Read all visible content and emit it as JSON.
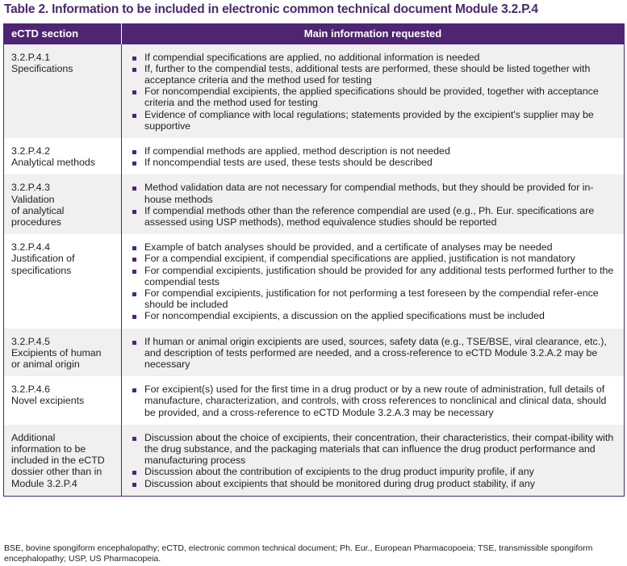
{
  "title": "Table 2. Information to be included in electronic common technical document Module 3.2.P.4",
  "headers": [
    "eCTD section",
    "Main information requested"
  ],
  "rows": [
    {
      "section": [
        "3.2.P.4.1",
        "Specifications"
      ],
      "items": [
        "If compendial specifications are applied, no additional information is needed",
        "If, further to the compendial tests, additional tests are performed, these should be listed together with acceptance criteria and the method used for testing",
        "For noncompendial excipients, the applied specifications should be provided, together with acceptance criteria and the method used for testing",
        "Evidence of compliance with local regulations; statements provided by the excipient's supplier may be supportive"
      ]
    },
    {
      "section": [
        "3.2.P.4.2",
        "Analytical methods"
      ],
      "items": [
        "If compendial methods are applied, method description is not needed",
        "If noncompendial tests are used, these tests should be described"
      ]
    },
    {
      "section": [
        "3.2.P.4.3",
        "Validation",
        "of analytical",
        "procedures"
      ],
      "items": [
        "Method validation data are not necessary for compendial methods, but they should be provided for in-house methods",
        "If compendial methods other than the reference compendial are used (e.g., Ph. Eur. specifications are assessed using USP methods), method equivalence studies should be reported"
      ]
    },
    {
      "section": [
        "3.2.P.4.4",
        "Justification of",
        "specifications"
      ],
      "items": [
        "Example of batch analyses should be provided, and a certificate of analyses may be needed",
        "For a compendial excipient, if compendial specifications are applied, justification is not mandatory",
        "For compendial excipients, justification should be provided for any additional tests performed further to the compendial tests",
        "For compendial excipients, justification for not performing a test foreseen by the compendial refer-ence should be included",
        "For noncompendial excipients, a discussion on the applied specifications must be included"
      ]
    },
    {
      "section": [
        "3.2.P.4.5",
        "Excipients of human",
        "or animal origin"
      ],
      "items": [
        "If human or animal origin excipients are used, sources, safety data (e.g., TSE/BSE, viral clearance, etc.), and description of tests performed are needed, and a cross-reference to eCTD Module 3.2.A.2 may be necessary"
      ]
    },
    {
      "section": [
        "3.2.P.4.6",
        "Novel excipients"
      ],
      "items": [
        "For excipient(s) used for the first time in a drug product or by a new route of administration, full details of manufacture, characterization, and controls, with cross references to nonclinical and clinical data, should be provided, and a cross-reference to eCTD Module 3.2.A.3 may be necessary"
      ]
    },
    {
      "section": [
        "Additional",
        "information to be",
        "included in the eCTD",
        "dossier other than in",
        "Module 3.2.P.4"
      ],
      "items": [
        "Discussion about the choice of excipients, their concentration, their characteristics, their compat-ibility with the drug substance, and the packaging materials that can influence the drug product performance and manufacturing process",
        "Discussion about the contribution of excipients to the drug product impurity profile, if any",
        "Discussion about excipients that should be monitored during drug product stability, if any"
      ]
    }
  ],
  "footnote": "BSE, bovine spongiform encephalopathy; eCTD, electronic common technical document; Ph. Eur., European Pharmacopoeia; TSE, transmissible spongiform encephalopathy; USP, US Pharmacopeia.",
  "colors": {
    "accent": "#4f2472",
    "row_shade": "#f0f0f0"
  }
}
